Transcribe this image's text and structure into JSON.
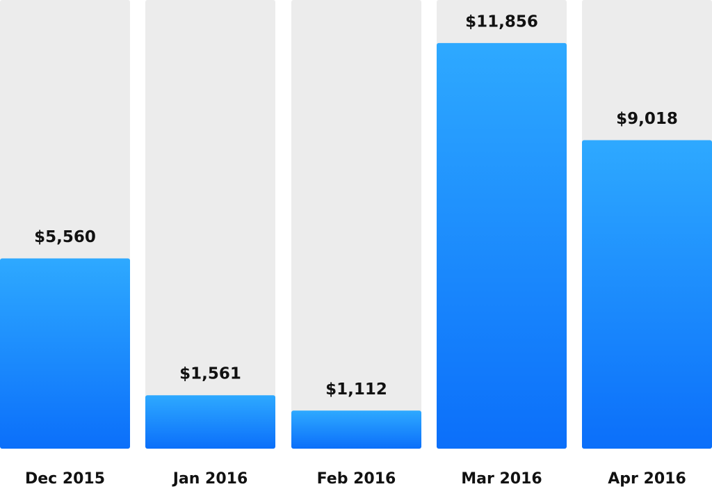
{
  "chart_data": {
    "type": "bar",
    "categories": [
      "Dec 2015",
      "Jan 2016",
      "Feb 2016",
      "Mar 2016",
      "Apr 2016"
    ],
    "values": [
      5560,
      1561,
      1112,
      11856,
      9018
    ],
    "value_labels": [
      "$5,560",
      "$1,561",
      "$1,112",
      "$11,856",
      "$9,018"
    ],
    "color": "#1a8cfc"
  }
}
